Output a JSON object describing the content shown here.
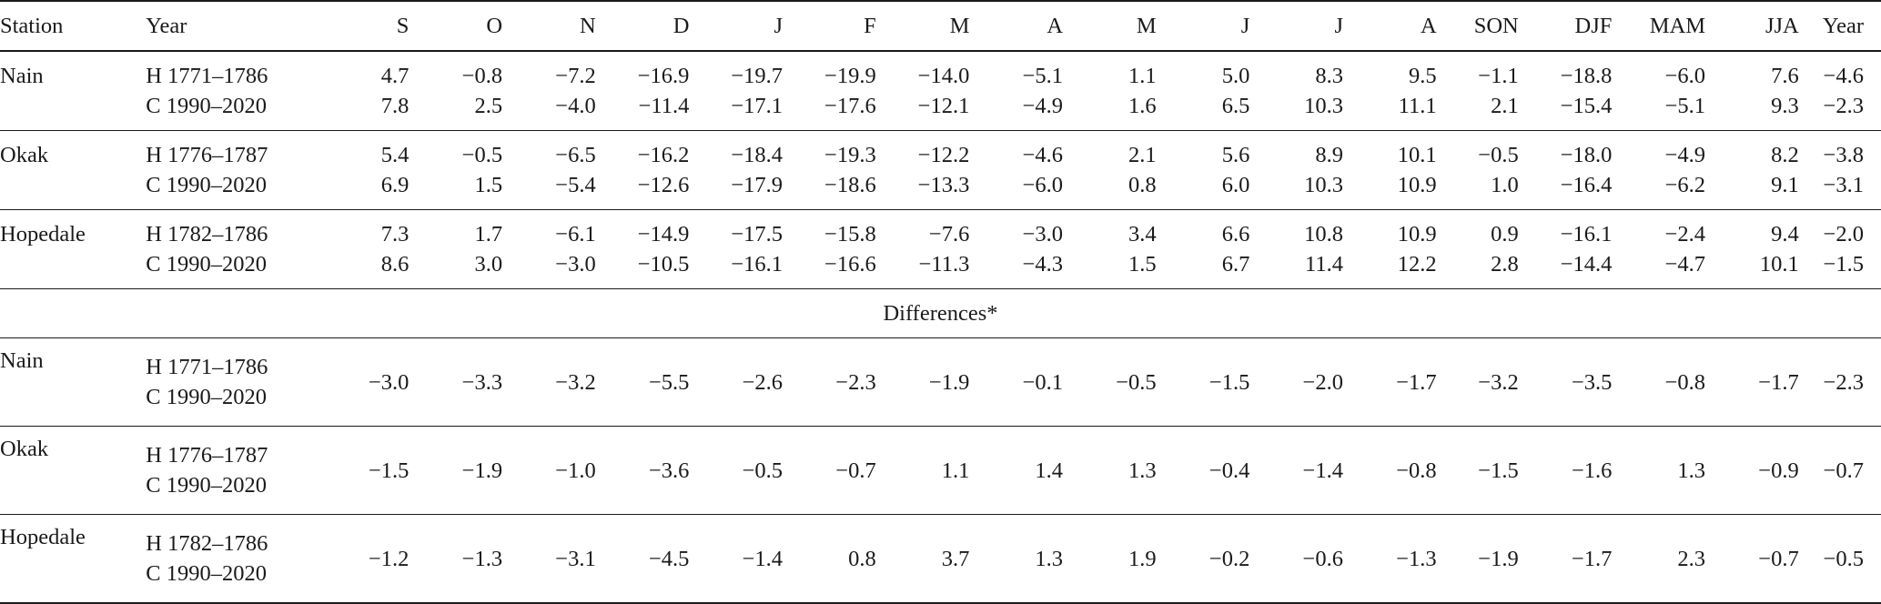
{
  "headers": [
    "Station",
    "Year",
    "S",
    "O",
    "N",
    "D",
    "J",
    "F",
    "M",
    "A",
    "M",
    "J",
    "J",
    "A",
    "SON",
    "DJF",
    "MAM",
    "JJA",
    "Year"
  ],
  "groups": [
    {
      "station": "Nain",
      "rows": [
        {
          "period": "H 1771–1786",
          "values": [
            "4.7",
            "−0.8",
            "−7.2",
            "−16.9",
            "−19.7",
            "−19.9",
            "−14.0",
            "−5.1",
            "1.1",
            "5.0",
            "8.3",
            "9.5",
            "−1.1",
            "−18.8",
            "−6.0",
            "7.6",
            "−4.6"
          ]
        },
        {
          "period": "C 1990–2020",
          "values": [
            "7.8",
            "2.5",
            "−4.0",
            "−11.4",
            "−17.1",
            "−17.6",
            "−12.1",
            "−4.9",
            "1.6",
            "6.5",
            "10.3",
            "11.1",
            "2.1",
            "−15.4",
            "−5.1",
            "9.3",
            "−2.3"
          ]
        }
      ]
    },
    {
      "station": "Okak",
      "rows": [
        {
          "period": "H 1776–1787",
          "values": [
            "5.4",
            "−0.5",
            "−6.5",
            "−16.2",
            "−18.4",
            "−19.3",
            "−12.2",
            "−4.6",
            "2.1",
            "5.6",
            "8.9",
            "10.1",
            "−0.5",
            "−18.0",
            "−4.9",
            "8.2",
            "−3.8"
          ]
        },
        {
          "period": "C 1990–2020",
          "values": [
            "6.9",
            "1.5",
            "−5.4",
            "−12.6",
            "−17.9",
            "−18.6",
            "−13.3",
            "−6.0",
            "0.8",
            "6.0",
            "10.3",
            "10.9",
            "1.0",
            "−16.4",
            "−6.2",
            "9.1",
            "−3.1"
          ]
        }
      ]
    },
    {
      "station": "Hopedale",
      "rows": [
        {
          "period": "H 1782–1786",
          "values": [
            "7.3",
            "1.7",
            "−6.1",
            "−14.9",
            "−17.5",
            "−15.8",
            "−7.6",
            "−3.0",
            "3.4",
            "6.6",
            "10.8",
            "10.9",
            "0.9",
            "−16.1",
            "−2.4",
            "9.4",
            "−2.0"
          ]
        },
        {
          "period": "C 1990–2020",
          "values": [
            "8.6",
            "3.0",
            "−3.0",
            "−10.5",
            "−16.1",
            "−16.6",
            "−11.3",
            "−4.3",
            "1.5",
            "6.7",
            "11.4",
            "12.2",
            "2.8",
            "−14.4",
            "−4.7",
            "10.1",
            "−1.5"
          ]
        }
      ]
    }
  ],
  "differences_label": "Differences*",
  "differences": [
    {
      "station": "Nain",
      "period_h": "H 1771–1786",
      "period_c": "C 1990–2020",
      "values": [
        "−3.0",
        "−3.3",
        "−3.2",
        "−5.5",
        "−2.6",
        "−2.3",
        "−1.9",
        "−0.1",
        "−0.5",
        "−1.5",
        "−2.0",
        "−1.7",
        "−3.2",
        "−3.5",
        "−0.8",
        "−1.7",
        "−2.3"
      ]
    },
    {
      "station": "Okak",
      "period_h": "H 1776–1787",
      "period_c": "C 1990–2020",
      "values": [
        "−1.5",
        "−1.9",
        "−1.0",
        "−3.6",
        "−0.5",
        "−0.7",
        "1.1",
        "1.4",
        "1.3",
        "−0.4",
        "−1.4",
        "−0.8",
        "−1.5",
        "−1.6",
        "1.3",
        "−0.9",
        "−0.7"
      ]
    },
    {
      "station": "Hopedale",
      "period_h": "H 1782–1786",
      "period_c": "C 1990–2020",
      "values": [
        "−1.2",
        "−1.3",
        "−3.1",
        "−4.5",
        "−1.4",
        "0.8",
        "3.7",
        "1.3",
        "1.9",
        "−0.2",
        "−0.6",
        "−1.3",
        "−1.9",
        "−1.7",
        "2.3",
        "−0.7",
        "−0.5"
      ]
    }
  ]
}
